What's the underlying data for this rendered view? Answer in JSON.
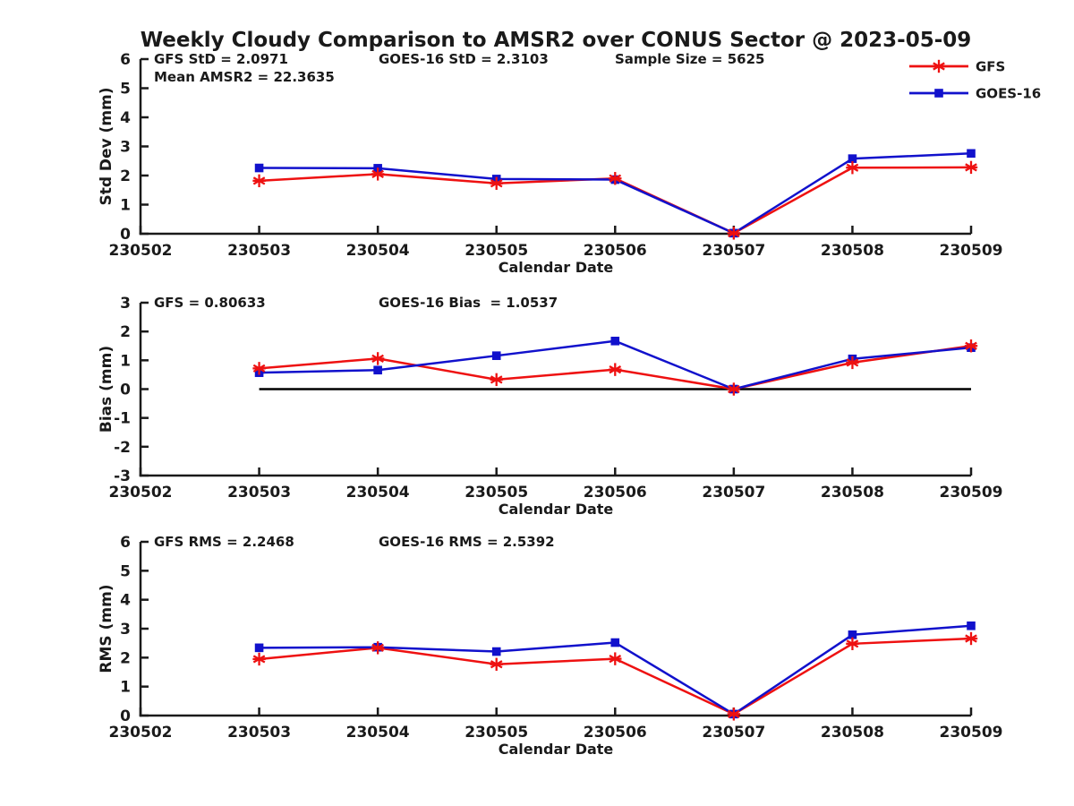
{
  "title": "Weekly Cloudy Comparison to AMSR2 over CONUS Sector @ 2023-05-09",
  "colors": {
    "gfs": "#ee1111",
    "goes": "#1111cc",
    "axis": "#1a1a1a",
    "text": "#1a1a1a",
    "zero_line": "#000000"
  },
  "legend": [
    {
      "label": "GFS",
      "color_key": "gfs",
      "marker": "asterisk"
    },
    {
      "label": "GOES-16",
      "color_key": "goes",
      "marker": "square"
    }
  ],
  "chart_data": [
    {
      "type": "line",
      "name": "stddev",
      "title": "",
      "ylabel": "Std Dev (mm)",
      "xlabel": "Calendar Date",
      "categories": [
        "230502",
        "230503",
        "230504",
        "230505",
        "230506",
        "230507",
        "230508",
        "230509"
      ],
      "ylim": [
        0,
        6
      ],
      "yticks": [
        0,
        1,
        2,
        3,
        4,
        5,
        6
      ],
      "grid": false,
      "zero_line": false,
      "annotations": [
        {
          "text": "GFS StD = 2.0971",
          "col": 0,
          "row": 0
        },
        {
          "text": "Mean AMSR2 = 22.3635",
          "col": 0,
          "row": 1
        },
        {
          "text": "GOES-16 StD = 2.3103",
          "col": 1,
          "row": 0
        },
        {
          "text": "Sample Size = 5625",
          "col": 2,
          "row": 0
        }
      ],
      "series": [
        {
          "name": "GFS",
          "color_key": "gfs",
          "marker": "asterisk",
          "start_index": 1,
          "values": [
            1.82,
            2.05,
            1.73,
            1.9,
            0.02,
            2.27,
            2.28
          ]
        },
        {
          "name": "GOES-16",
          "color_key": "goes",
          "marker": "square",
          "start_index": 1,
          "values": [
            2.26,
            2.25,
            1.88,
            1.86,
            0.02,
            2.58,
            2.76
          ]
        }
      ]
    },
    {
      "type": "line",
      "name": "bias",
      "title": "",
      "ylabel": "Bias (mm)",
      "xlabel": "Calendar Date",
      "categories": [
        "230502",
        "230503",
        "230504",
        "230505",
        "230506",
        "230507",
        "230508",
        "230509"
      ],
      "ylim": [
        -3,
        3
      ],
      "yticks": [
        -3,
        -2,
        -1,
        0,
        1,
        2,
        3
      ],
      "grid": false,
      "zero_line": true,
      "annotations": [
        {
          "text": "GFS = 0.80633",
          "col": 0,
          "row": 0
        },
        {
          "text": "GOES-16 Bias  = 1.0537",
          "col": 1,
          "row": 0
        }
      ],
      "series": [
        {
          "name": "GFS",
          "color_key": "gfs",
          "marker": "asterisk",
          "start_index": 1,
          "values": [
            0.72,
            1.06,
            0.33,
            0.68,
            0.0,
            0.92,
            1.5
          ]
        },
        {
          "name": "GOES-16",
          "color_key": "goes",
          "marker": "square",
          "start_index": 1,
          "values": [
            0.57,
            0.66,
            1.16,
            1.67,
            0.0,
            1.05,
            1.44
          ]
        }
      ]
    },
    {
      "type": "line",
      "name": "rms",
      "title": "",
      "ylabel": "RMS (mm)",
      "xlabel": "Calendar Date",
      "categories": [
        "230502",
        "230503",
        "230504",
        "230505",
        "230506",
        "230507",
        "230508",
        "230509"
      ],
      "ylim": [
        0,
        6
      ],
      "yticks": [
        0,
        1,
        2,
        3,
        4,
        5,
        6
      ],
      "grid": false,
      "zero_line": false,
      "annotations": [
        {
          "text": "GFS RMS = 2.2468",
          "col": 0,
          "row": 0
        },
        {
          "text": "GOES-16 RMS = 2.5392",
          "col": 1,
          "row": 0
        }
      ],
      "series": [
        {
          "name": "GFS",
          "color_key": "gfs",
          "marker": "asterisk",
          "start_index": 1,
          "values": [
            1.95,
            2.34,
            1.77,
            1.96,
            0.05,
            2.48,
            2.66
          ]
        },
        {
          "name": "GOES-16",
          "color_key": "goes",
          "marker": "square",
          "start_index": 1,
          "values": [
            2.34,
            2.36,
            2.21,
            2.52,
            0.05,
            2.79,
            3.1
          ]
        }
      ]
    }
  ]
}
